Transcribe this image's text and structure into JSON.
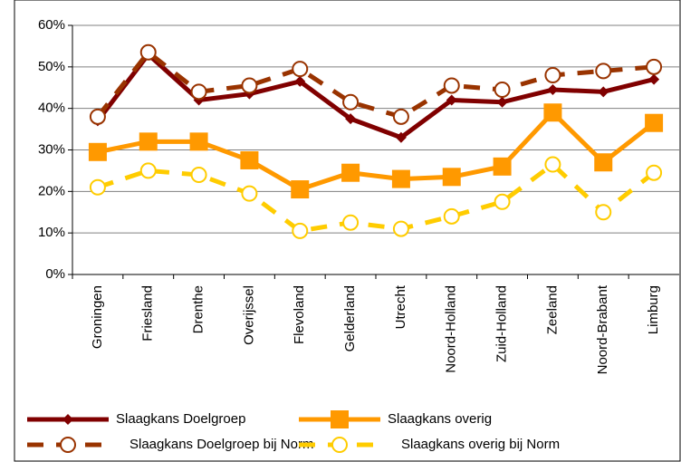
{
  "chart_data": {
    "type": "line",
    "categories": [
      "Groningen",
      "Friesland",
      "Drenthe",
      "Overijssel",
      "Flevoland",
      "Gelderland",
      "Utrecht",
      "Noord-Holland",
      "Zuid-Holland",
      "Zeeland",
      "Noord-Brabant",
      "Limburg"
    ],
    "series": [
      {
        "name": "Slaagkans Doelgroep",
        "color": "#800000",
        "marker": "diamond",
        "dashed": false,
        "values": [
          37,
          53,
          42,
          43.5,
          46.5,
          37.5,
          33,
          42,
          41.5,
          44.5,
          44,
          47
        ]
      },
      {
        "name": "Slaagkans overig",
        "color": "#ff9900",
        "marker": "square",
        "dashed": false,
        "values": [
          29.5,
          32,
          32,
          27.5,
          20.5,
          24.5,
          23,
          23.5,
          26,
          39,
          27,
          36.5
        ]
      },
      {
        "name": "Slaagkans Doelgroep bij Norm",
        "color": "#993300",
        "marker": "circle",
        "dashed": true,
        "values": [
          38,
          53.5,
          44,
          45.5,
          49.5,
          41.5,
          38,
          45.5,
          44.5,
          48,
          49,
          50
        ]
      },
      {
        "name": "Slaagkans overig bij Norm",
        "color": "#ffcc00",
        "marker": "circle",
        "dashed": true,
        "values": [
          21,
          25,
          24,
          19.5,
          10.5,
          12.5,
          11,
          14,
          17.5,
          26.5,
          15,
          24.5
        ]
      }
    ],
    "ylim": [
      0,
      60
    ],
    "yticks": [
      {
        "value": 0,
        "label": "0%"
      },
      {
        "value": 10,
        "label": "10%"
      },
      {
        "value": 20,
        "label": "20%"
      },
      {
        "value": 30,
        "label": "30%"
      },
      {
        "value": 40,
        "label": "40%"
      },
      {
        "value": 50,
        "label": "50%"
      },
      {
        "value": 60,
        "label": "60%"
      }
    ],
    "grid": true
  }
}
